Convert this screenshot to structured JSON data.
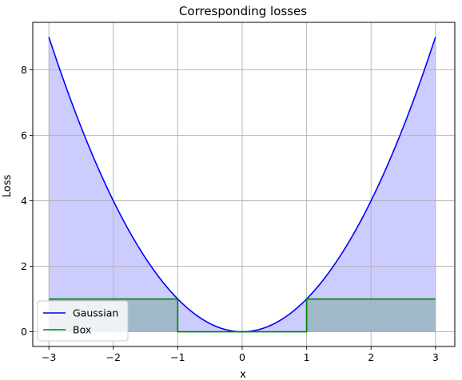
{
  "chart_data": {
    "type": "line",
    "title": "Corresponding losses",
    "xlabel": "x",
    "ylabel": "Loss",
    "xlim": [
      -3.25,
      3.3
    ],
    "ylim": [
      -0.45,
      9.45
    ],
    "x_ticks": [
      -3,
      -2,
      -1,
      0,
      1,
      2,
      3
    ],
    "x_tick_labels": [
      "−3",
      "−2",
      "−1",
      "0",
      "1",
      "2",
      "3"
    ],
    "y_ticks": [
      0,
      2,
      4,
      6,
      8
    ],
    "y_tick_labels": [
      "0",
      "2",
      "4",
      "6",
      "8"
    ],
    "grid": true,
    "legend_position": "lower-left",
    "series": [
      {
        "name": "Gaussian",
        "color": "#0000ff",
        "fill_color": "#ccccff",
        "x": [
          -3,
          -2.75,
          -2.5,
          -2.25,
          -2,
          -1.75,
          -1.5,
          -1.25,
          -1,
          -0.75,
          -0.5,
          -0.25,
          0,
          0.25,
          0.5,
          0.75,
          1,
          1.25,
          1.5,
          1.75,
          2,
          2.25,
          2.5,
          2.75,
          3
        ],
        "y": [
          9,
          7.5625,
          6.25,
          5.0625,
          4,
          3.0625,
          2.25,
          1.5625,
          1,
          0.5625,
          0.25,
          0.0625,
          0,
          0.0625,
          0.25,
          0.5625,
          1,
          1.5625,
          2.25,
          3.0625,
          4,
          5.0625,
          6.25,
          7.5625,
          9
        ]
      },
      {
        "name": "Box",
        "color": "#008000",
        "fill_color": "#a0b9c8",
        "x": [
          -3,
          -1,
          -1,
          1,
          1,
          3
        ],
        "y": [
          1,
          1,
          0,
          0,
          1,
          1
        ]
      }
    ]
  }
}
